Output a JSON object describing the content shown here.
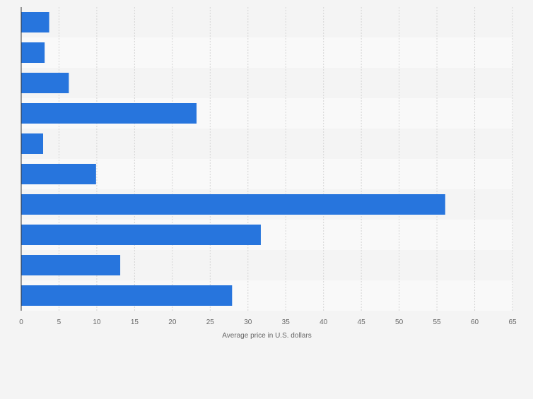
{
  "chart_data": {
    "type": "bar",
    "orientation": "horizontal",
    "categories": [
      "",
      "",
      "",
      "",
      "",
      "",
      "",
      "",
      "",
      ""
    ],
    "values": [
      3.7,
      3.1,
      6.3,
      23.2,
      2.9,
      9.9,
      56.1,
      31.7,
      13.1,
      27.9
    ],
    "xlabel": "Average price in U.S. dollars",
    "xlim": [
      0,
      65
    ],
    "xticks": [
      "0",
      "5",
      "10",
      "15",
      "20",
      "25",
      "30",
      "35",
      "40",
      "45",
      "50",
      "55",
      "60",
      "65"
    ],
    "grid": true,
    "colors": {
      "bar": "#2775dd",
      "band_dark": "#f4f4f4",
      "band_light": "#f9f9f9",
      "grid": "#d5d5d5",
      "axis": "#333333",
      "text": "#666666"
    }
  }
}
